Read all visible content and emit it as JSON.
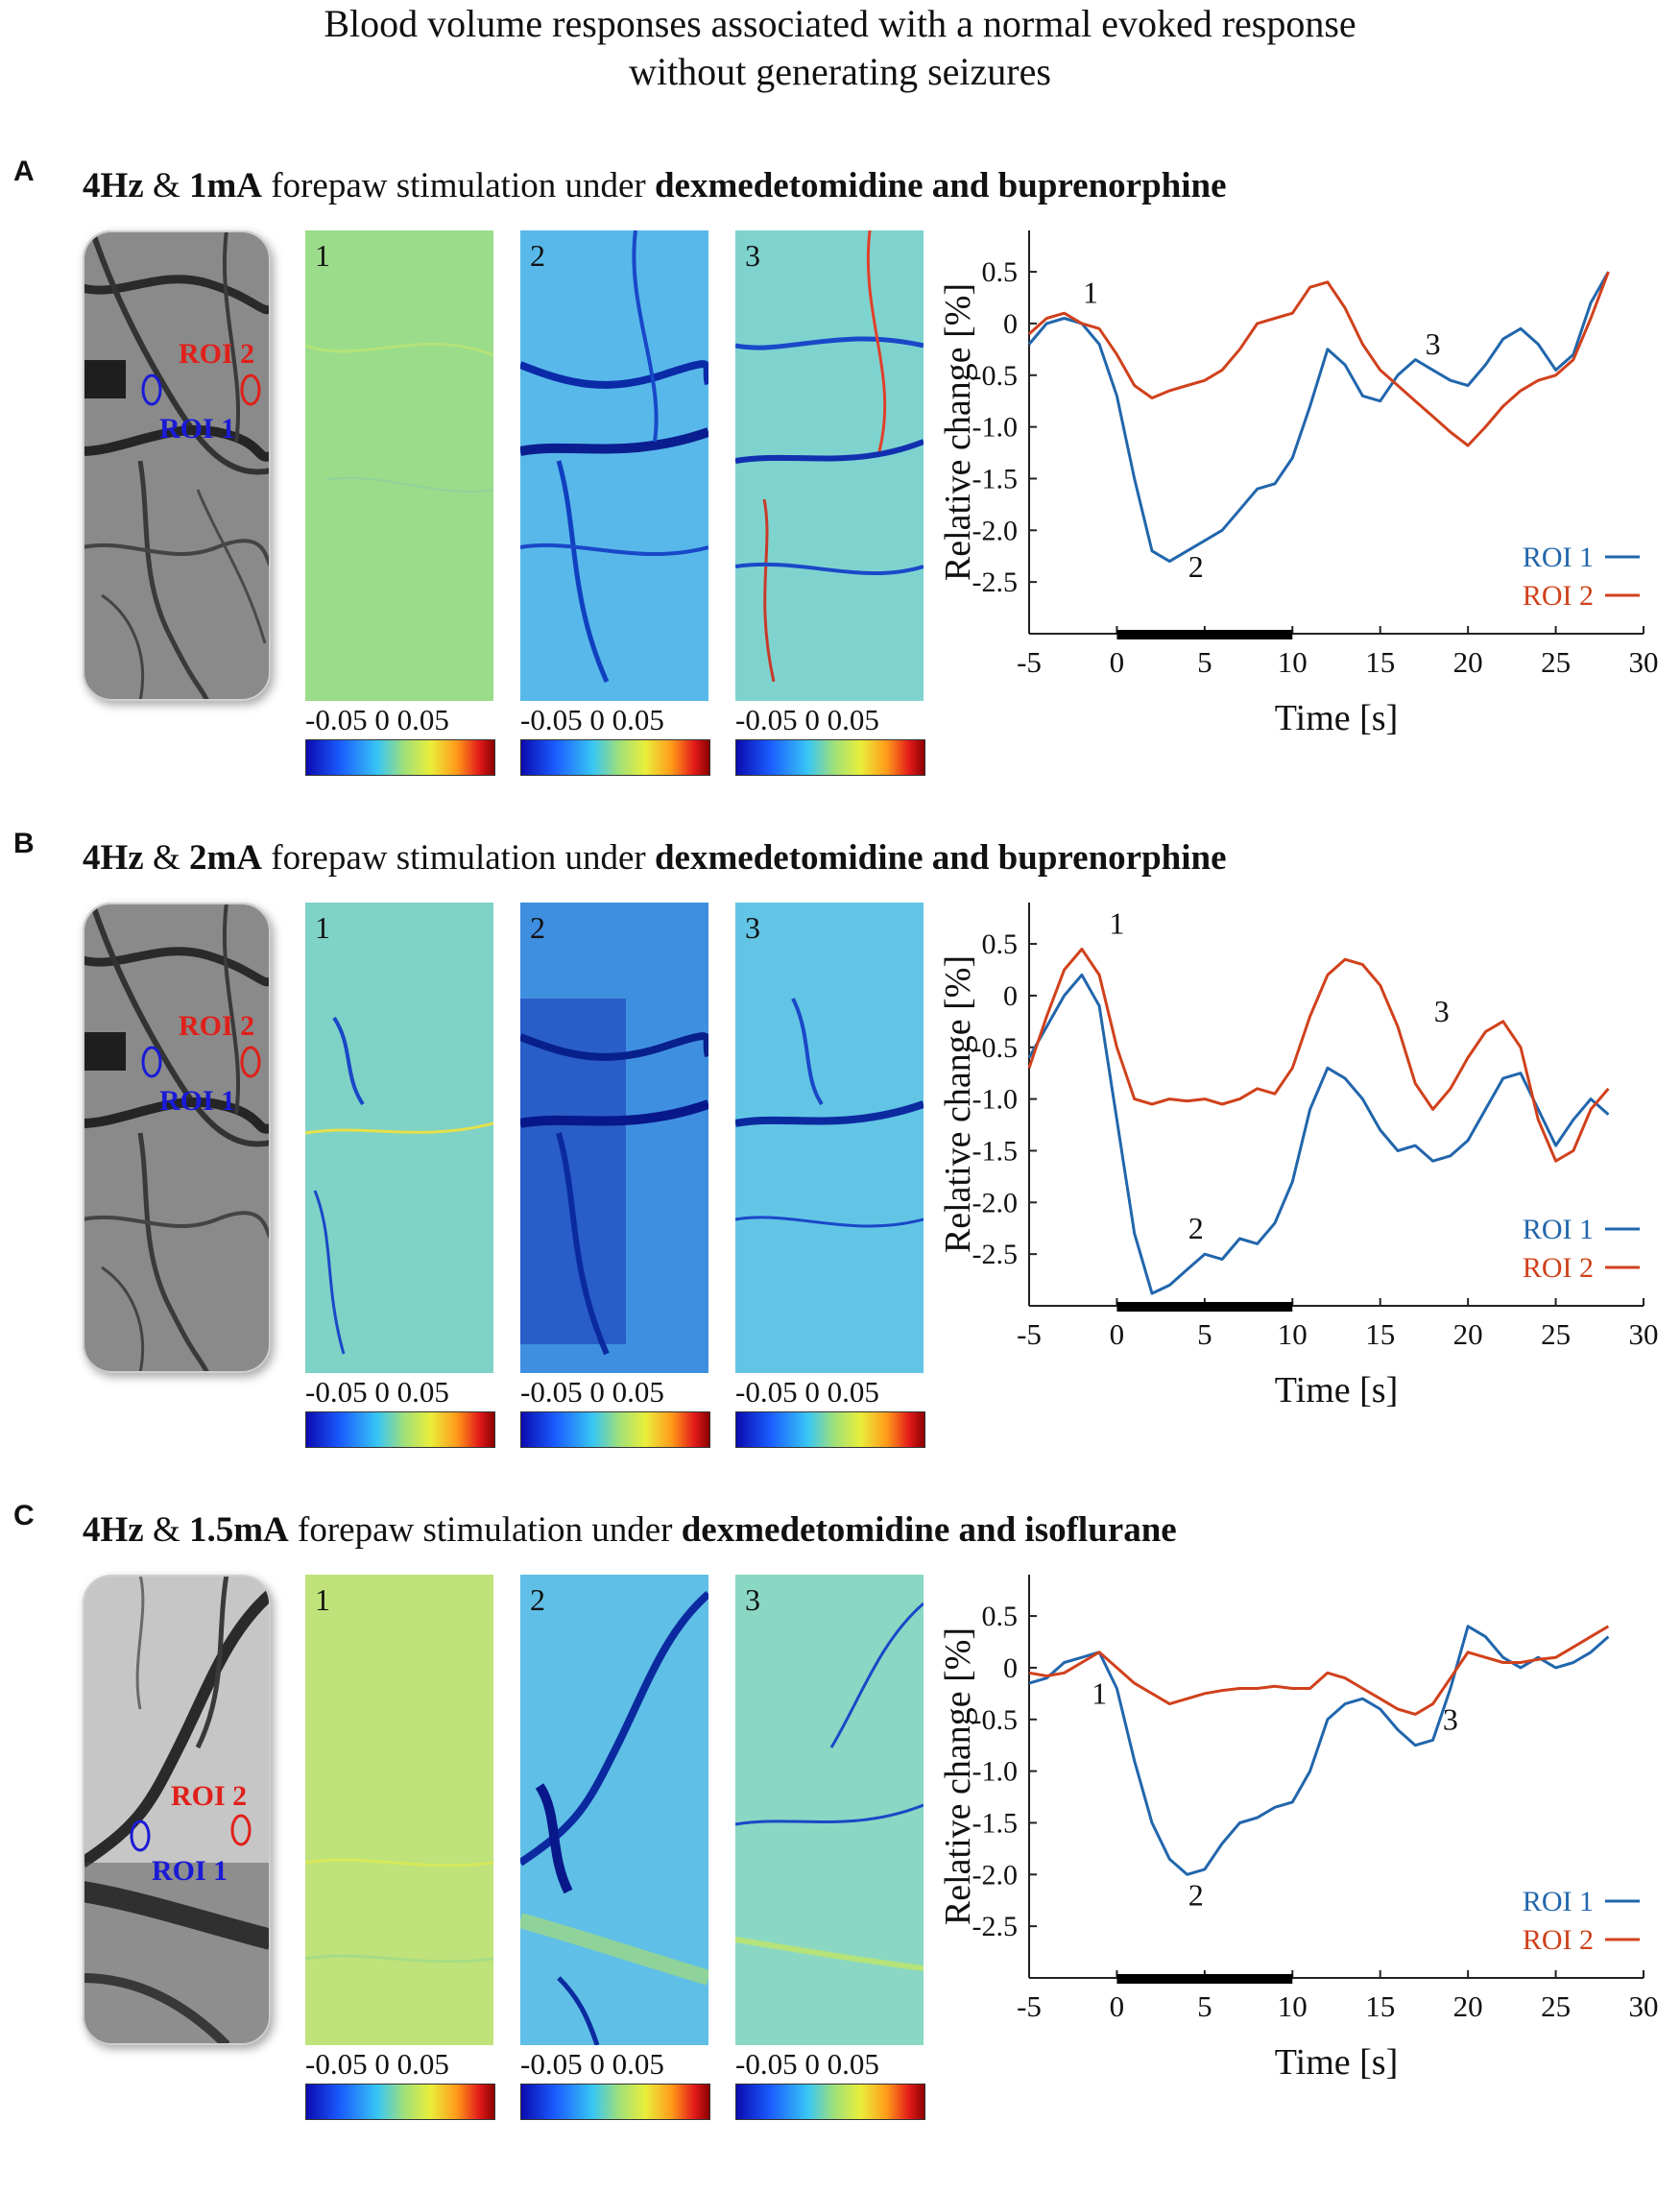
{
  "title": {
    "line1": "Blood volume responses associated with a normal evoked response",
    "line2": "without generating seizures"
  },
  "colors": {
    "roi1": "#2166ac",
    "roi2": "#d0411c",
    "roi1_label": "#1a1ad6",
    "roi2_label": "#e0201a"
  },
  "shared": {
    "roi1_label": "ROI 1",
    "roi2_label": "ROI 2",
    "map_numbers": [
      "1",
      "2",
      "3"
    ],
    "colorbar_ticks": "-0.05 0 0.05"
  },
  "panels": [
    {
      "letter": "A",
      "heading": {
        "freq": "4Hz",
        "amp_sep": "&",
        "amp": "1mA",
        "middle": "forepaw stimulation under",
        "drug": "dexmedetomidine and buprenorphine"
      }
    },
    {
      "letter": "B",
      "heading": {
        "freq": "4Hz",
        "amp_sep": "&",
        "amp": "2mA",
        "middle": "forepaw stimulation under",
        "drug": "dexmedetomidine and buprenorphine"
      }
    },
    {
      "letter": "C",
      "heading": {
        "freq": "4Hz",
        "amp_sep": "&",
        "amp": "1.5mA",
        "middle": "forepaw stimulation under",
        "drug": "dexmedetomidine and isoflurane"
      }
    }
  ],
  "chart_data": [
    {
      "type": "line",
      "panel": "A",
      "xlabel": "Time [s]",
      "ylabel": "Relative change [%]",
      "xlim": [
        -5,
        30
      ],
      "ylim": [
        -3.0,
        0.9
      ],
      "xticks": [
        -5,
        0,
        5,
        10,
        15,
        20,
        25,
        30
      ],
      "yticks": [
        0.5,
        0,
        -0.5,
        -1.0,
        -1.5,
        -2.0,
        -2.5
      ],
      "ytick_labels": [
        "0.5",
        "0",
        "-0.5",
        "-1.0",
        "-1.5",
        "-2.0",
        "-2.5"
      ],
      "stimulus": [
        0,
        10
      ],
      "legend": "bottom-right",
      "series": [
        {
          "name": "ROI 1",
          "color": "#2166ac",
          "x": [
            -5,
            -4,
            -3,
            -2,
            -1,
            0,
            1,
            2,
            3,
            4,
            5,
            6,
            7,
            8,
            9,
            10,
            11,
            12,
            13,
            14,
            15,
            16,
            17,
            18,
            19,
            20,
            21,
            22,
            23,
            24,
            25,
            26,
            27,
            28
          ],
          "y": [
            -0.2,
            0.0,
            0.05,
            0.0,
            -0.2,
            -0.7,
            -1.5,
            -2.2,
            -2.3,
            -2.2,
            -2.1,
            -2.0,
            -1.8,
            -1.6,
            -1.55,
            -1.3,
            -0.8,
            -0.25,
            -0.4,
            -0.7,
            -0.75,
            -0.5,
            -0.35,
            -0.45,
            -0.55,
            -0.6,
            -0.4,
            -0.15,
            -0.05,
            -0.2,
            -0.45,
            -0.3,
            0.2,
            0.5
          ]
        },
        {
          "name": "ROI 2",
          "color": "#d0411c",
          "x": [
            -5,
            -4,
            -3,
            -2,
            -1,
            0,
            1,
            2,
            3,
            4,
            5,
            6,
            7,
            8,
            9,
            10,
            11,
            12,
            13,
            14,
            15,
            16,
            17,
            18,
            19,
            20,
            21,
            22,
            23,
            24,
            25,
            26,
            27,
            28
          ],
          "y": [
            -0.1,
            0.05,
            0.1,
            0.0,
            -0.05,
            -0.3,
            -0.6,
            -0.72,
            -0.65,
            -0.6,
            -0.55,
            -0.45,
            -0.25,
            0.0,
            0.05,
            0.1,
            0.35,
            0.4,
            0.15,
            -0.2,
            -0.45,
            -0.6,
            -0.75,
            -0.9,
            -1.05,
            -1.18,
            -1.0,
            -0.8,
            -0.65,
            -0.55,
            -0.5,
            -0.35,
            0.05,
            0.5
          ]
        }
      ],
      "annotations": [
        {
          "text": "1",
          "x": -1.5,
          "y": 0.2
        },
        {
          "text": "2",
          "x": 4.5,
          "y": -2.45
        },
        {
          "text": "3",
          "x": 18,
          "y": -0.3
        }
      ]
    },
    {
      "type": "line",
      "panel": "B",
      "xlabel": "Time [s]",
      "ylabel": "Relative change [%]",
      "xlim": [
        -5,
        30
      ],
      "ylim": [
        -3.0,
        0.9
      ],
      "xticks": [
        -5,
        0,
        5,
        10,
        15,
        20,
        25,
        30
      ],
      "yticks": [
        0.5,
        0,
        -0.5,
        -1.0,
        -1.5,
        -2.0,
        -2.5
      ],
      "ytick_labels": [
        "0.5",
        "0",
        "-0.5",
        "-1.0",
        "-1.5",
        "-2.0",
        "-2.5"
      ],
      "stimulus": [
        0,
        10
      ],
      "legend": "bottom-right",
      "series": [
        {
          "name": "ROI 1",
          "color": "#2166ac",
          "x": [
            -5,
            -4,
            -3,
            -2,
            -1,
            0,
            1,
            2,
            3,
            4,
            5,
            6,
            7,
            8,
            9,
            10,
            11,
            12,
            13,
            14,
            15,
            16,
            17,
            18,
            19,
            20,
            21,
            22,
            23,
            24,
            25,
            26,
            27,
            28
          ],
          "y": [
            -0.6,
            -0.3,
            0.0,
            0.2,
            -0.1,
            -1.2,
            -2.3,
            -2.88,
            -2.8,
            -2.65,
            -2.5,
            -2.55,
            -2.35,
            -2.4,
            -2.2,
            -1.8,
            -1.1,
            -0.7,
            -0.8,
            -1.0,
            -1.3,
            -1.5,
            -1.45,
            -1.6,
            -1.55,
            -1.4,
            -1.1,
            -0.8,
            -0.75,
            -1.1,
            -1.45,
            -1.2,
            -1.0,
            -1.15
          ]
        },
        {
          "name": "ROI 2",
          "color": "#d0411c",
          "x": [
            -5,
            -4,
            -3,
            -2,
            -1,
            0,
            1,
            2,
            3,
            4,
            5,
            6,
            7,
            8,
            9,
            10,
            11,
            12,
            13,
            14,
            15,
            16,
            17,
            18,
            19,
            20,
            21,
            22,
            23,
            24,
            25,
            26,
            27,
            28
          ],
          "y": [
            -0.7,
            -0.2,
            0.25,
            0.45,
            0.2,
            -0.5,
            -1.0,
            -1.05,
            -1.0,
            -1.02,
            -1.0,
            -1.05,
            -1.0,
            -0.9,
            -0.95,
            -0.7,
            -0.2,
            0.2,
            0.35,
            0.3,
            0.1,
            -0.3,
            -0.85,
            -1.1,
            -0.9,
            -0.6,
            -0.35,
            -0.25,
            -0.5,
            -1.2,
            -1.6,
            -1.5,
            -1.1,
            -0.9
          ]
        }
      ],
      "annotations": [
        {
          "text": "1",
          "x": 0,
          "y": 0.6
        },
        {
          "text": "2",
          "x": 4.5,
          "y": -2.35
        },
        {
          "text": "3",
          "x": 18.5,
          "y": -0.25
        }
      ]
    },
    {
      "type": "line",
      "panel": "C",
      "xlabel": "Time [s]",
      "ylabel": "Relative change [%]",
      "xlim": [
        -5,
        30
      ],
      "ylim": [
        -3.0,
        0.9
      ],
      "xticks": [
        -5,
        0,
        5,
        10,
        15,
        20,
        25,
        30
      ],
      "yticks": [
        0.5,
        0,
        -0.5,
        -1.0,
        -1.5,
        -2.0,
        -2.5
      ],
      "ytick_labels": [
        "0.5",
        "0",
        "-0.5",
        "-1.0",
        "-1.5",
        "-2.0",
        "-2.5"
      ],
      "stimulus": [
        0,
        10
      ],
      "legend": "bottom-right",
      "series": [
        {
          "name": "ROI 1",
          "color": "#2166ac",
          "x": [
            -5,
            -4,
            -3,
            -2,
            -1,
            0,
            1,
            2,
            3,
            4,
            5,
            6,
            7,
            8,
            9,
            10,
            11,
            12,
            13,
            14,
            15,
            16,
            17,
            18,
            19,
            20,
            21,
            22,
            23,
            24,
            25,
            26,
            27,
            28
          ],
          "y": [
            -0.15,
            -0.1,
            0.05,
            0.1,
            0.15,
            -0.2,
            -0.9,
            -1.5,
            -1.85,
            -2.0,
            -1.95,
            -1.7,
            -1.5,
            -1.45,
            -1.35,
            -1.3,
            -1.0,
            -0.5,
            -0.35,
            -0.3,
            -0.4,
            -0.6,
            -0.75,
            -0.7,
            -0.2,
            0.4,
            0.3,
            0.1,
            0.0,
            0.1,
            0.0,
            0.05,
            0.15,
            0.3
          ]
        },
        {
          "name": "ROI 2",
          "color": "#d0411c",
          "x": [
            -5,
            -4,
            -3,
            -2,
            -1,
            0,
            1,
            2,
            3,
            4,
            5,
            6,
            7,
            8,
            9,
            10,
            11,
            12,
            13,
            14,
            15,
            16,
            17,
            18,
            19,
            20,
            21,
            22,
            23,
            24,
            25,
            26,
            27,
            28
          ],
          "y": [
            -0.05,
            -0.08,
            -0.05,
            0.05,
            0.15,
            0.0,
            -0.15,
            -0.25,
            -0.35,
            -0.3,
            -0.25,
            -0.22,
            -0.2,
            -0.2,
            -0.18,
            -0.2,
            -0.2,
            -0.05,
            -0.1,
            -0.2,
            -0.3,
            -0.4,
            -0.45,
            -0.35,
            -0.1,
            0.15,
            0.1,
            0.05,
            0.05,
            0.08,
            0.1,
            0.2,
            0.3,
            0.4
          ]
        }
      ],
      "annotations": [
        {
          "text": "1",
          "x": -1,
          "y": -0.35
        },
        {
          "text": "2",
          "x": 4.5,
          "y": -2.3
        },
        {
          "text": "3",
          "x": 19,
          "y": -0.6
        }
      ]
    }
  ]
}
